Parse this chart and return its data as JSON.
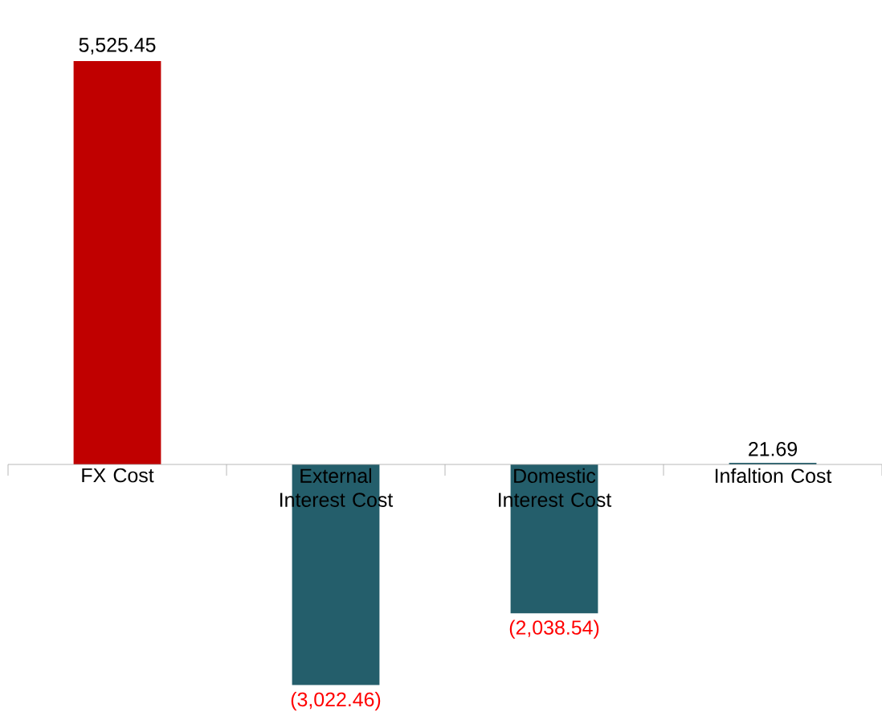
{
  "chart_data": {
    "type": "bar",
    "categories": [
      "FX Cost",
      "External Interest Cost",
      "Domestic Interest Cost",
      "Infaltion Cost"
    ],
    "values": [
      5525.45,
      -3022.46,
      -2038.54,
      21.69
    ],
    "colors": [
      "#c00000",
      "#245e6b",
      "#245e6b",
      "#245e6b"
    ],
    "value_labels": [
      "5,525.45",
      "(3,022.46)",
      "(2,038.54)",
      "21.69"
    ]
  }
}
